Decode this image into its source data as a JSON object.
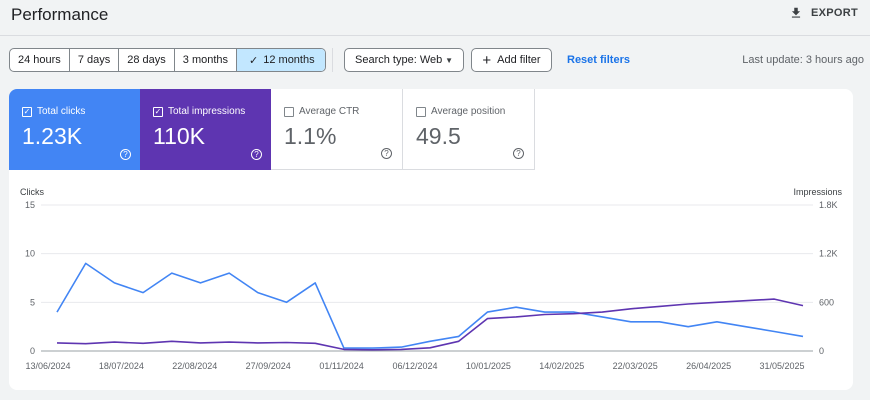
{
  "header": {
    "title": "Performance",
    "export_label": "EXPORT"
  },
  "toolbar": {
    "ranges": [
      {
        "label": "24 hours",
        "active": false
      },
      {
        "label": "7 days",
        "active": false
      },
      {
        "label": "28 days",
        "active": false
      },
      {
        "label": "3 months",
        "active": false
      },
      {
        "label": "12 months",
        "active": true
      }
    ],
    "search_type": "Search type: Web",
    "add_filter": "Add filter",
    "reset_filters": "Reset filters",
    "last_update": "Last update: 3 hours ago"
  },
  "metrics": [
    {
      "label": "Total clicks",
      "value": "1.23K",
      "checked": true,
      "color": "#4285f4"
    },
    {
      "label": "Total impressions",
      "value": "110K",
      "checked": true,
      "color": "#5e35b1"
    },
    {
      "label": "Average CTR",
      "value": "1.1%",
      "checked": false
    },
    {
      "label": "Average position",
      "value": "49.5",
      "checked": false
    }
  ],
  "chart_data": {
    "type": "line",
    "left_axis_label": "Clicks",
    "right_axis_label": "Impressions",
    "left_ticks": [
      "0",
      "5",
      "10",
      "15"
    ],
    "right_ticks": [
      "0",
      "600",
      "1.2K",
      "1.8K"
    ],
    "ylim_left": [
      0,
      15
    ],
    "ylim_right": [
      0,
      1800
    ],
    "grid": true,
    "x_ticks": [
      "13/06/2024",
      "18/07/2024",
      "22/08/2024",
      "27/09/2024",
      "01/11/2024",
      "06/12/2024",
      "10/01/2025",
      "14/02/2025",
      "22/03/2025",
      "26/04/2025",
      "31/05/2025"
    ],
    "series": [
      {
        "name": "Clicks",
        "axis": "left",
        "color": "#4285f4",
        "x": [
          "2024-06-13",
          "2024-06-27",
          "2024-07-11",
          "2024-07-25",
          "2024-08-08",
          "2024-08-22",
          "2024-09-05",
          "2024-09-19",
          "2024-10-03",
          "2024-10-17",
          "2024-10-31",
          "2024-11-14",
          "2024-11-28",
          "2024-12-12",
          "2024-12-26",
          "2025-01-09",
          "2025-01-23",
          "2025-02-06",
          "2025-02-20",
          "2025-03-06",
          "2025-03-20",
          "2025-04-03",
          "2025-04-17",
          "2025-05-01",
          "2025-05-15",
          "2025-05-29",
          "2025-06-12"
        ],
        "values": [
          4,
          9,
          7,
          6,
          8,
          7,
          8,
          6,
          5,
          7,
          0.3,
          0.3,
          0.4,
          1,
          1.5,
          4,
          4.5,
          4,
          4,
          3.5,
          3,
          3,
          2.5,
          3,
          2.5,
          2,
          1.5
        ]
      },
      {
        "name": "Impressions",
        "axis": "right",
        "color": "#5e35b1",
        "x": [
          "2024-06-13",
          "2024-06-27",
          "2024-07-11",
          "2024-07-25",
          "2024-08-08",
          "2024-08-22",
          "2024-09-05",
          "2024-09-19",
          "2024-10-03",
          "2024-10-17",
          "2024-10-31",
          "2024-11-14",
          "2024-11-28",
          "2024-12-12",
          "2024-12-26",
          "2025-01-09",
          "2025-01-23",
          "2025-02-06",
          "2025-02-20",
          "2025-03-06",
          "2025-03-20",
          "2025-04-03",
          "2025-04-17",
          "2025-05-01",
          "2025-05-15",
          "2025-05-29",
          "2025-06-12"
        ],
        "values": [
          100,
          90,
          110,
          95,
          120,
          100,
          110,
          100,
          105,
          95,
          20,
          15,
          20,
          40,
          120,
          400,
          420,
          450,
          460,
          480,
          520,
          550,
          580,
          600,
          620,
          640,
          560
        ]
      }
    ]
  }
}
